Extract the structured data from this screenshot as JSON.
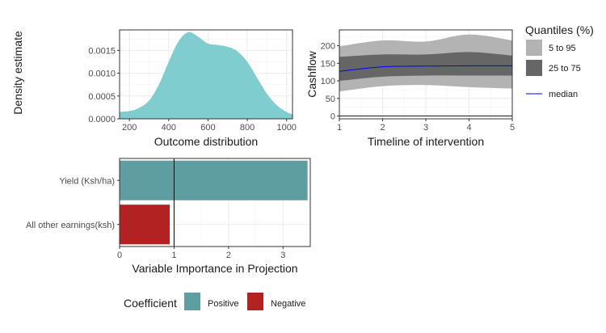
{
  "chart_data": [
    {
      "type": "area",
      "xlabel": "Outcome distribution",
      "ylabel": "Density estimate",
      "xlim": [
        150,
        1030
      ],
      "ylim": [
        0,
        0.00195
      ],
      "x_ticks": [
        200,
        400,
        600,
        800,
        1000
      ],
      "y_ticks": [
        0.0,
        0.0005,
        0.001,
        0.0015
      ],
      "y_tick_labels": [
        "0.0000",
        "0.0005",
        "0.0010",
        "0.0015"
      ],
      "grid": true,
      "fill_color": "#7fcdce",
      "x": [
        150,
        200,
        250,
        300,
        350,
        400,
        450,
        500,
        550,
        600,
        650,
        700,
        750,
        800,
        850,
        900,
        950,
        1000,
        1030
      ],
      "y": [
        0.00015,
        0.00017,
        0.00024,
        0.0004,
        0.00075,
        0.00125,
        0.0017,
        0.0019,
        0.0018,
        0.00165,
        0.00162,
        0.00158,
        0.00148,
        0.00125,
        0.0009,
        0.00055,
        0.0003,
        0.00015,
        0.0001
      ]
    },
    {
      "type": "area",
      "xlabel": "Timeline of intervention",
      "ylabel": "Cashflow",
      "xlim": [
        1,
        5
      ],
      "ylim": [
        -8,
        245
      ],
      "x_ticks": [
        1,
        2,
        3,
        4,
        5
      ],
      "y_ticks": [
        0,
        50,
        100,
        150,
        200
      ],
      "grid": true,
      "x": [
        1,
        2,
        3,
        4,
        5
      ],
      "q5": [
        70,
        85,
        88,
        82,
        78
      ],
      "q25": [
        100,
        112,
        115,
        115,
        115
      ],
      "median": [
        127,
        140,
        142,
        143,
        143
      ],
      "q75": [
        168,
        175,
        175,
        182,
        172
      ],
      "q95": [
        198,
        215,
        212,
        232,
        215
      ],
      "zero_line": 0,
      "legend": {
        "title": "Quantiles (%)",
        "items": [
          {
            "label": "5 to 95",
            "color": "#b3b3b3"
          },
          {
            "label": "25 to 75",
            "color": "#666666"
          },
          {
            "label": "median",
            "color": "#0000ff"
          }
        ]
      }
    },
    {
      "type": "bar",
      "orientation": "horizontal",
      "xlabel": "Variable Importance in Projection",
      "ylabel": "",
      "xlim": [
        0,
        3.5
      ],
      "x_ticks": [
        0,
        1,
        2,
        3
      ],
      "grid": true,
      "categories": [
        "Yield (Ksh/ha)",
        "All other earnings(ksh)"
      ],
      "values": [
        3.45,
        0.92
      ],
      "coefficients": [
        "Positive",
        "Negative"
      ],
      "reference_line": 1,
      "legend": {
        "title": "Coefficient",
        "items": [
          {
            "label": "Positive",
            "color": "#5f9ea0"
          },
          {
            "label": "Negative",
            "color": "#b22222"
          }
        ]
      }
    }
  ]
}
